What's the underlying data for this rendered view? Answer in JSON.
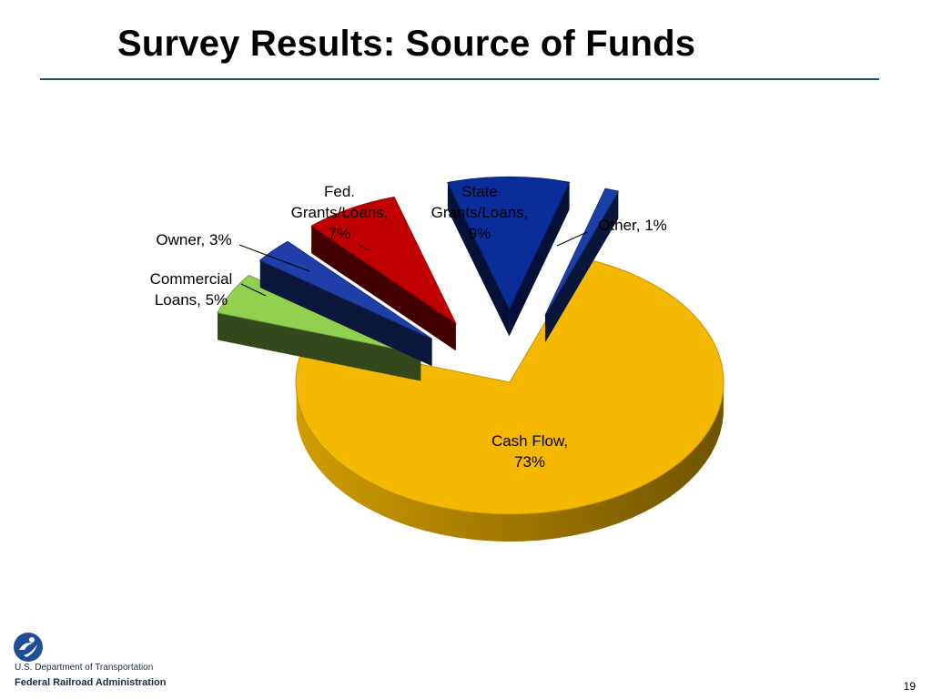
{
  "slide": {
    "title": "Survey Results:  Source of Funds",
    "page_number": "19"
  },
  "footer": {
    "dept_text": "U.S. Department of Transportation",
    "admin_text": "Federal Railroad Administration"
  },
  "chart_data": {
    "type": "pie",
    "title": "",
    "style": "3d-exploded",
    "slices": [
      {
        "name": "Cash Flow",
        "value": 73,
        "label_lines": [
          "Cash Flow,",
          "73%"
        ],
        "color": "#f5b800"
      },
      {
        "name": "Commercial Loans",
        "value": 5,
        "label_lines": [
          "Commercial",
          "Loans, 5%"
        ],
        "color": "#92d050"
      },
      {
        "name": "Owner",
        "value": 3,
        "label_lines": [
          "Owner, 3%"
        ],
        "color": "#1f3ea8"
      },
      {
        "name": "Fed. Grants/Loans",
        "value": 7,
        "label_lines": [
          "Fed.",
          "Grants/Loans,",
          "7%"
        ],
        "color": "#c00000"
      },
      {
        "name": "State Grants/Loans",
        "value": 9,
        "label_lines": [
          "State",
          "Grants/Loans,",
          "9%"
        ],
        "color": "#0b2d9a"
      },
      {
        "name": "Other",
        "value": 1,
        "label_lines": [
          "Other, 1%"
        ],
        "color": "#1a3fa6"
      }
    ]
  }
}
